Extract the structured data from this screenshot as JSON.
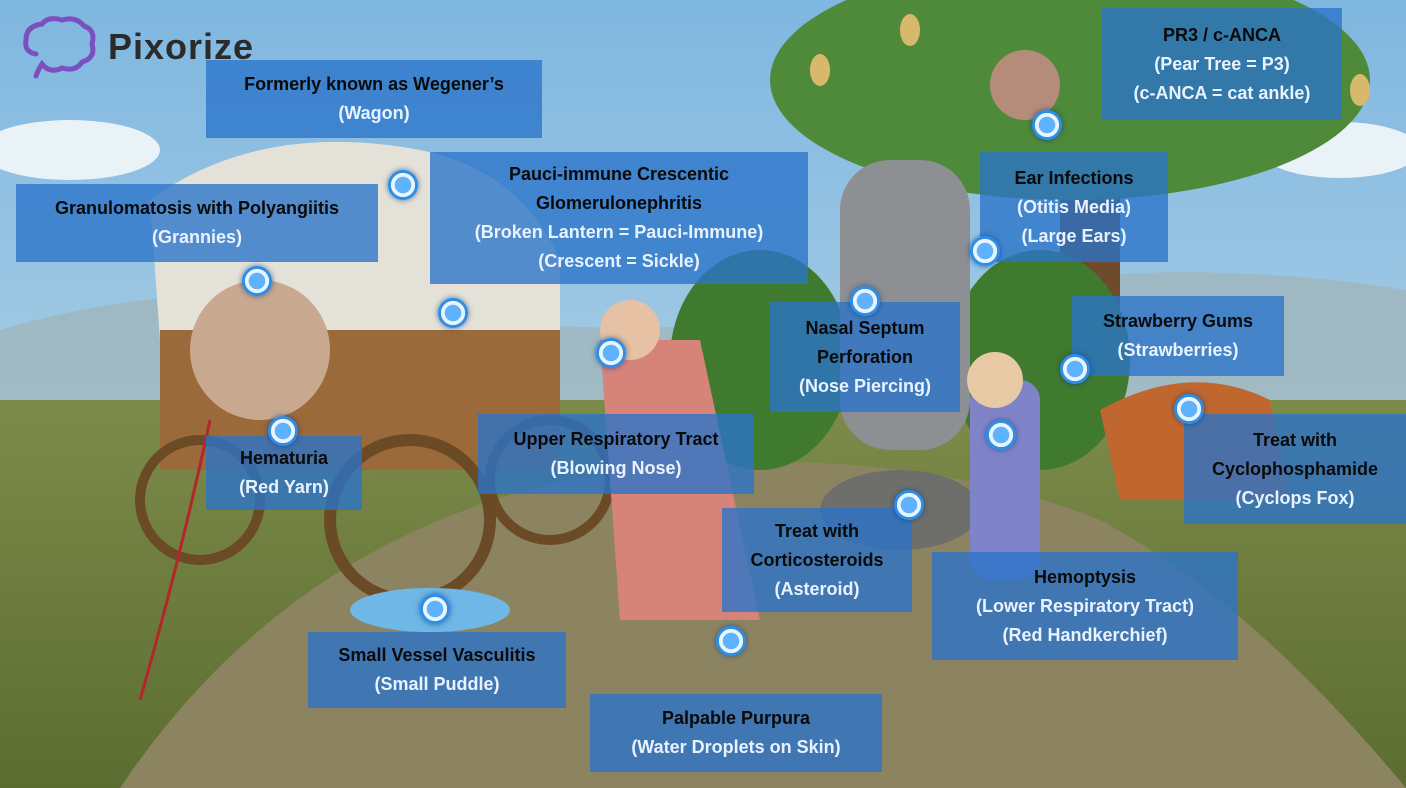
{
  "brand": {
    "name": "Pixorize",
    "icon": "brain-icon",
    "accent": "#7b4fbf"
  },
  "colors": {
    "label_bg": "#2a73c9",
    "hotspot": "#3a96e8",
    "sky": "#8fc3e6",
    "grass": "#6f8a3c"
  },
  "labels": [
    {
      "title": "Formerly known as Wegener’s",
      "lines": [
        "(Wagon)"
      ]
    },
    {
      "title": "PR3 / c-ANCA",
      "lines": [
        "(Pear Tree = P3)",
        "(c-ANCA = cat ankle)"
      ]
    },
    {
      "title": "Granulomatosis with Polyangiitis",
      "lines": [
        "(Grannies)"
      ]
    },
    {
      "title": "Pauci-immune Crescentic Glomerulonephritis",
      "lines": [
        "(Broken Lantern = Pauci-Immune)",
        "(Crescent = Sickle)"
      ]
    },
    {
      "title": "Ear Infections",
      "lines": [
        "(Otitis Media)",
        "(Large Ears)"
      ]
    },
    {
      "title": "Nasal Septum Perforation",
      "lines": [
        "(Nose Piercing)"
      ]
    },
    {
      "title": "Strawberry Gums",
      "lines": [
        "(Strawberries)"
      ]
    },
    {
      "title": "Upper Respiratory Tract",
      "lines": [
        "(Blowing Nose)"
      ]
    },
    {
      "title": "Hematuria",
      "lines": [
        "(Red Yarn)"
      ]
    },
    {
      "title": "Treat with Cyclophosphamide",
      "lines": [
        "(Cyclops Fox)"
      ]
    },
    {
      "title": "Treat with Corticosteroids",
      "lines": [
        "(Asteroid)"
      ]
    },
    {
      "title": "Hemoptysis",
      "lines": [
        "(Lower Respiratory Tract)",
        "(Red Handkerchief)"
      ]
    },
    {
      "title": "Small Vessel Vasculitis",
      "lines": [
        "(Small Puddle)"
      ]
    },
    {
      "title": "Palpable Purpura",
      "lines": [
        "(Water Droplets on Skin)"
      ]
    }
  ]
}
